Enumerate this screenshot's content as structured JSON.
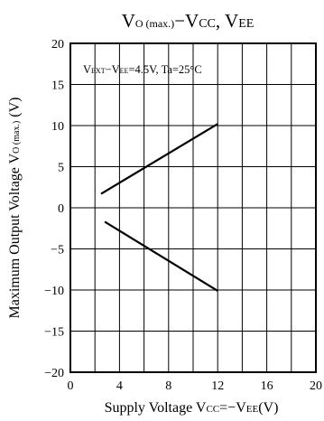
{
  "chart_data": {
    "type": "line",
    "title_parts": [
      "V",
      "O (max.)",
      "−V",
      "CC",
      ", V",
      "EE"
    ],
    "annotation_parts": [
      "V",
      "EXT",
      "−V",
      "EE",
      "=4.5V, Ta=25°C"
    ],
    "xlabel_parts": [
      "Supply Voltage  V",
      "CC",
      "=−V",
      "EE",
      "(V)"
    ],
    "ylabel_parts": [
      "Maximum Output Voltage  V",
      "O (max.)",
      " (V)"
    ],
    "xlim": [
      0,
      20
    ],
    "ylim": [
      -20,
      20
    ],
    "x_ticks": [
      "0",
      "4",
      "8",
      "12",
      "16",
      "20"
    ],
    "y_ticks": [
      "20",
      "15",
      "10",
      "5",
      "0",
      "−5",
      "−10",
      "−15",
      "−20"
    ],
    "grid": true,
    "series": [
      {
        "x": [
          2.5,
          12
        ],
        "y": [
          1.7,
          10.2
        ]
      },
      {
        "x": [
          2.8,
          12
        ],
        "y": [
          -1.7,
          -10.1
        ]
      }
    ]
  }
}
